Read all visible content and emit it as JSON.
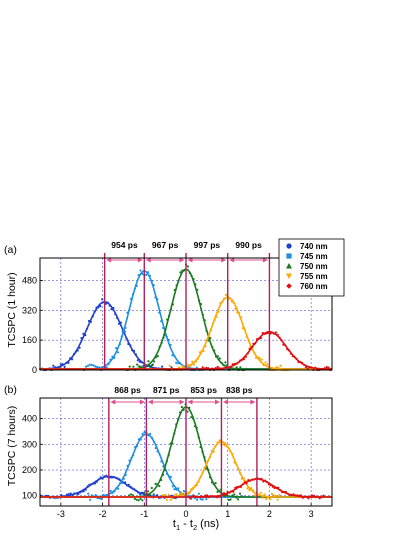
{
  "colors": {
    "740": "#1f3fcf",
    "745": "#1e90e0",
    "750": "#1a7a20",
    "755": "#ffa800",
    "760": "#e01010",
    "marker": "#b0205a",
    "arrow": "#e0508f",
    "grid": "#3333cc"
  },
  "legend": {
    "items": [
      {
        "label": "740 nm",
        "marker": "circle",
        "color_key": "740"
      },
      {
        "label": "745 nm",
        "marker": "square",
        "color_key": "745"
      },
      {
        "label": "750 nm",
        "marker": "triangle-up",
        "color_key": "750"
      },
      {
        "label": "755 nm",
        "marker": "triangle-down",
        "color_key": "755"
      },
      {
        "label": "760 nm",
        "marker": "diamond",
        "color_key": "760"
      }
    ]
  },
  "chart_data": [
    {
      "type": "line",
      "panel_label": "(a)",
      "ylabel": "TCSPC (1 hour)",
      "xlim": [
        -3.5,
        3.5
      ],
      "ylim": [
        0,
        600
      ],
      "yticks": [
        0,
        160,
        320,
        480
      ],
      "xticks": [
        -3,
        -2,
        -1,
        0,
        1,
        2,
        3
      ],
      "grid": true,
      "series": [
        {
          "name": "740 nm",
          "color_key": "740",
          "center": -1.95,
          "amplitude": 360,
          "baseline": 5,
          "sigma": 0.42
        },
        {
          "name": "745 nm",
          "color_key": "745",
          "center": -1.0,
          "amplitude": 525,
          "baseline": 5,
          "sigma": 0.36
        },
        {
          "name": "750 nm",
          "color_key": "750",
          "center": 0.0,
          "amplitude": 535,
          "baseline": 5,
          "sigma": 0.36
        },
        {
          "name": "755 nm",
          "color_key": "755",
          "center": 1.0,
          "amplitude": 385,
          "baseline": 5,
          "sigma": 0.37
        },
        {
          "name": "760 nm",
          "color_key": "760",
          "center": 2.0,
          "amplitude": 200,
          "baseline": 5,
          "sigma": 0.4
        }
      ],
      "markers": [
        -1.95,
        -1.0,
        0.0,
        1.0,
        2.0
      ],
      "intervals": [
        "954 ps",
        "967 ps",
        "997 ps",
        "990 ps"
      ]
    },
    {
      "type": "line",
      "panel_label": "(b)",
      "ylabel": "TCSPC (7 hours)",
      "xlabel_main": "t",
      "xlabel_sub1": "1",
      "xlabel_mid": " - t",
      "xlabel_sub2": "2",
      "xlabel_unit": " (ns)",
      "xlim": [
        -3.5,
        3.5
      ],
      "ylim": [
        60,
        480
      ],
      "yticks": [
        100,
        200,
        300,
        400
      ],
      "xticks": [
        -3,
        -2,
        -1,
        0,
        1,
        2,
        3
      ],
      "xtick_labels": [
        "-3",
        "-2",
        "-1",
        "0",
        "1",
        "2",
        "3"
      ],
      "grid": true,
      "series": [
        {
          "name": "740 nm",
          "color_key": "740",
          "center": -1.85,
          "amplitude": 80,
          "baseline": 95,
          "sigma": 0.42
        },
        {
          "name": "745 nm",
          "color_key": "745",
          "center": -0.95,
          "amplitude": 245,
          "baseline": 95,
          "sigma": 0.36
        },
        {
          "name": "750 nm",
          "color_key": "750",
          "center": 0.0,
          "amplitude": 350,
          "baseline": 95,
          "sigma": 0.34
        },
        {
          "name": "755 nm",
          "color_key": "755",
          "center": 0.85,
          "amplitude": 215,
          "baseline": 95,
          "sigma": 0.35
        },
        {
          "name": "760 nm",
          "color_key": "760",
          "center": 1.7,
          "amplitude": 70,
          "baseline": 95,
          "sigma": 0.4
        }
      ],
      "markers": [
        -1.85,
        -0.95,
        0.0,
        0.85,
        1.7
      ],
      "intervals": [
        "868 ps",
        "871 ps",
        "853 ps",
        "838 ps"
      ]
    }
  ]
}
